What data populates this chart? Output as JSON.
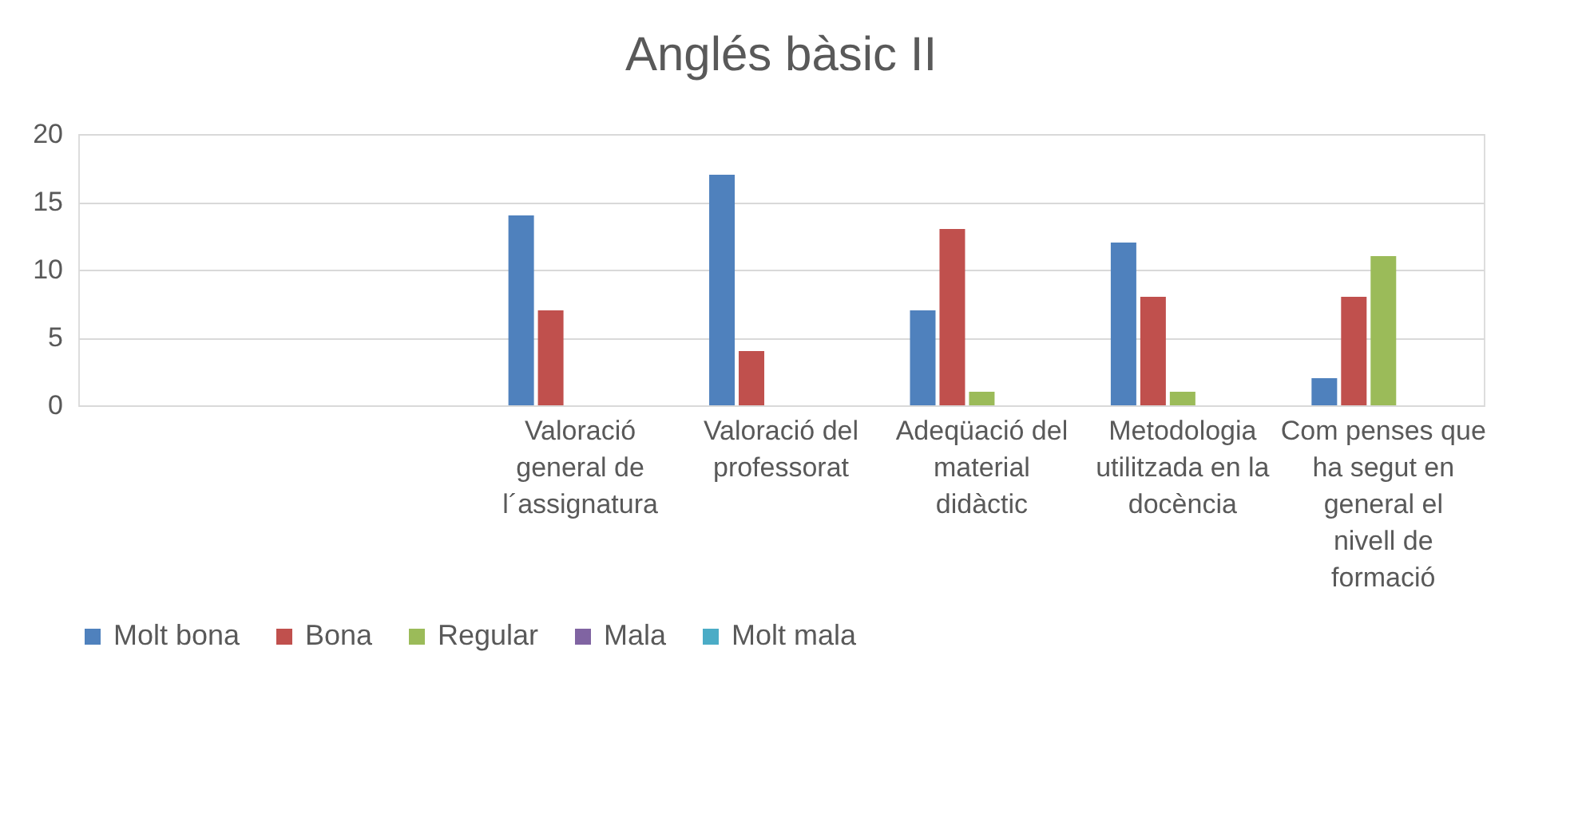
{
  "chart_data": {
    "type": "bar",
    "title": "Anglés bàsic II",
    "categories": [
      null,
      null,
      "Valoració general de l´assignatura",
      "Valoració del professorat",
      "Adeqüació del material didàctic",
      "Metodologia utilitzada en la docència",
      "Com penses que ha segut en general el nivell de formació"
    ],
    "series": [
      {
        "name": "Molt bona",
        "color": "#4f81bd",
        "values": [
          null,
          null,
          14,
          17,
          7,
          12,
          2
        ]
      },
      {
        "name": "Bona",
        "color": "#c0504d",
        "values": [
          null,
          null,
          7,
          4,
          13,
          8,
          8
        ]
      },
      {
        "name": "Regular",
        "color": "#9bbb59",
        "values": [
          null,
          null,
          null,
          null,
          1,
          1,
          11
        ]
      },
      {
        "name": "Mala",
        "color": "#8064a2",
        "values": [
          null,
          null,
          null,
          null,
          null,
          null,
          null
        ]
      },
      {
        "name": "Molt mala",
        "color": "#4bacc6",
        "values": [
          null,
          null,
          null,
          null,
          null,
          null,
          null
        ]
      }
    ],
    "ylim": [
      0,
      20
    ],
    "yticks": [
      0,
      5,
      10,
      15,
      20
    ],
    "grid": "y",
    "legend": "bottom"
  }
}
